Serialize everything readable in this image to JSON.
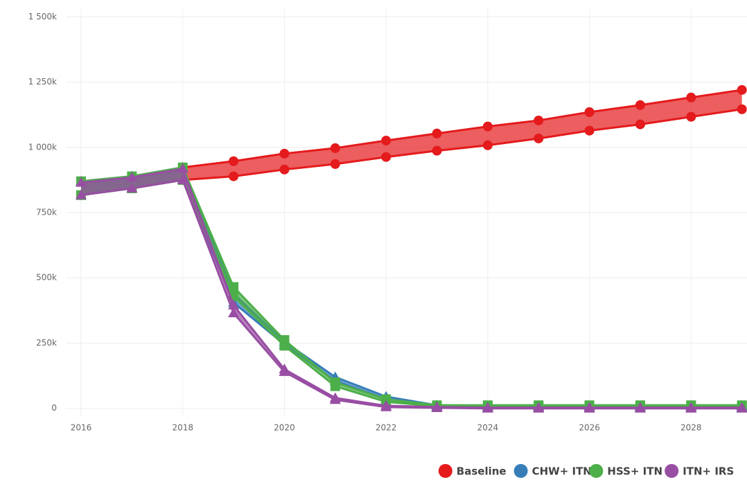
{
  "chart_data": {
    "type": "band-line",
    "x": [
      2016,
      2017,
      2018,
      2019,
      2020,
      2021,
      2022,
      2023,
      2024,
      2025,
      2026,
      2027,
      2028,
      2029
    ],
    "xlim": [
      2015.7,
      2029.1
    ],
    "xticks": [
      2016,
      2018,
      2020,
      2022,
      2024,
      2026,
      2028
    ],
    "ylim": [
      -30000,
      1530000
    ],
    "yticks": [
      0,
      {
        "value": 250000,
        "label": "250k"
      },
      {
        "value": 500000,
        "label": "500k"
      },
      {
        "value": 750000,
        "label": "750k"
      },
      {
        "value": 1000000,
        "label": "1 000k"
      },
      {
        "value": 1250000,
        "label": "1 250k"
      },
      {
        "value": 1500000,
        "label": "1 500k"
      }
    ],
    "grid": true,
    "legend": "bottom-right",
    "series": [
      {
        "name": "Baseline",
        "color": "#e41a1c",
        "marker": "circle",
        "upper": [
          870000,
          889000,
          923000,
          947000,
          976000,
          997000,
          1026000,
          1053000,
          1080000,
          1103000,
          1135000,
          1162000,
          1191000,
          1220000
        ],
        "lower": [
          817000,
          843000,
          875000,
          889000,
          915000,
          936000,
          963000,
          987000,
          1008000,
          1034000,
          1064000,
          1088000,
          1117000,
          1146000
        ]
      },
      {
        "name": "CHW+ ITN",
        "color": "#377eb8",
        "marker": "triangle",
        "upper": [
          870000,
          889000,
          923000,
          440000,
          255000,
          120000,
          45000,
          12000,
          10000,
          10000,
          10000,
          10000,
          10000,
          10000
        ],
        "lower": [
          817000,
          843000,
          875000,
          405000,
          245000,
          105000,
          35000,
          8000,
          5000,
          5000,
          5000,
          5000,
          5000,
          5000
        ]
      },
      {
        "name": "HSS+ ITN",
        "color": "#4daf4a",
        "marker": "square",
        "upper": [
          870000,
          889000,
          923000,
          465000,
          262000,
          100000,
          35000,
          12000,
          12000,
          12000,
          12000,
          12000,
          12000,
          12000
        ],
        "lower": [
          817000,
          843000,
          875000,
          430000,
          240000,
          85000,
          25000,
          8000,
          8000,
          8000,
          8000,
          8000,
          8000,
          8000
        ]
      },
      {
        "name": "ITN+ IRS",
        "color": "#984ea3",
        "marker": "triangle",
        "upper": [
          865000,
          885000,
          918000,
          395000,
          150000,
          40000,
          10000,
          5000,
          3000,
          3000,
          3000,
          3000,
          3000,
          3000
        ],
        "lower": [
          817000,
          843000,
          875000,
          365000,
          140000,
          33000,
          5000,
          2000,
          0,
          0,
          0,
          0,
          0,
          0
        ]
      }
    ]
  }
}
